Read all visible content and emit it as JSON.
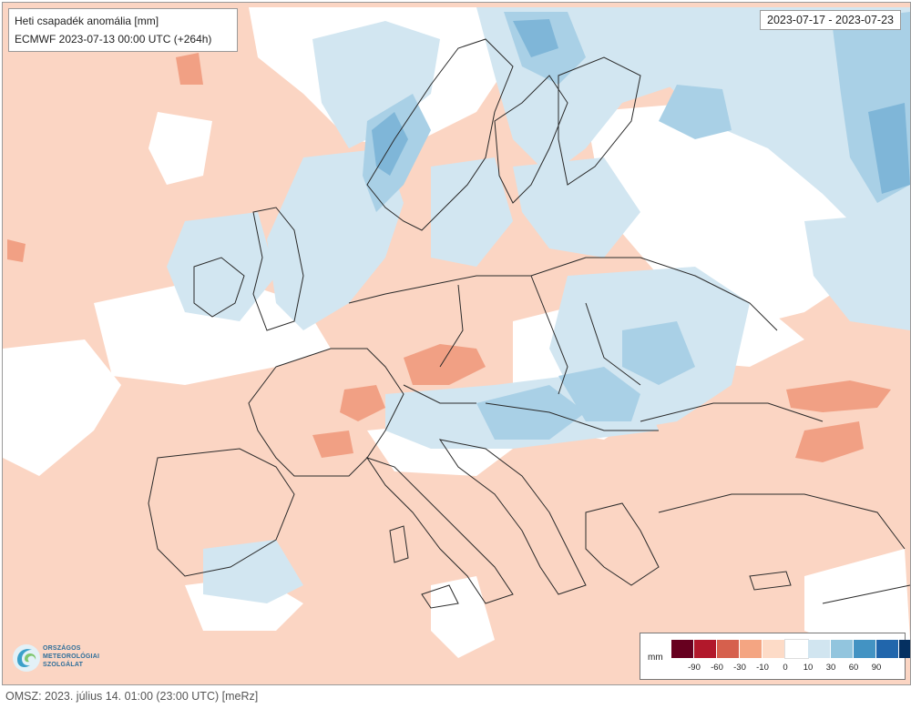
{
  "title": {
    "line1": "Heti csapadék anomália [mm]",
    "line2": "ECMWF 2023-07-13 00:00 UTC (+264h)"
  },
  "date_range": "2023-07-17 - 2023-07-23",
  "legend": {
    "unit": "mm",
    "colors": [
      "#67001f",
      "#b2182b",
      "#d6604d",
      "#f4a582",
      "#fddbc7",
      "#ffffff",
      "#d1e5f0",
      "#92c5de",
      "#4393c3",
      "#2166ac",
      "#053061"
    ],
    "ticks": [
      "-90",
      "-60",
      "-30",
      "-10",
      "0",
      "10",
      "30",
      "60",
      "90"
    ]
  },
  "logo": {
    "lines": [
      "ORSZÁGOS",
      "METEOROLÓGIAI",
      "SZOLGÁLAT"
    ]
  },
  "footer": "OMSZ: 2023. július 14. 01:00 (23:00 UTC)  [meRz]",
  "map": {
    "region": "Europe",
    "colors": {
      "background_positive": "#fbd5c3",
      "light_blue": "#d2e6f1",
      "mid_blue": "#a9d0e6",
      "dark_blue": "#7fb6d8",
      "orange": "#f1a084",
      "white": "#ffffff",
      "border": "#2a2a2a"
    }
  }
}
